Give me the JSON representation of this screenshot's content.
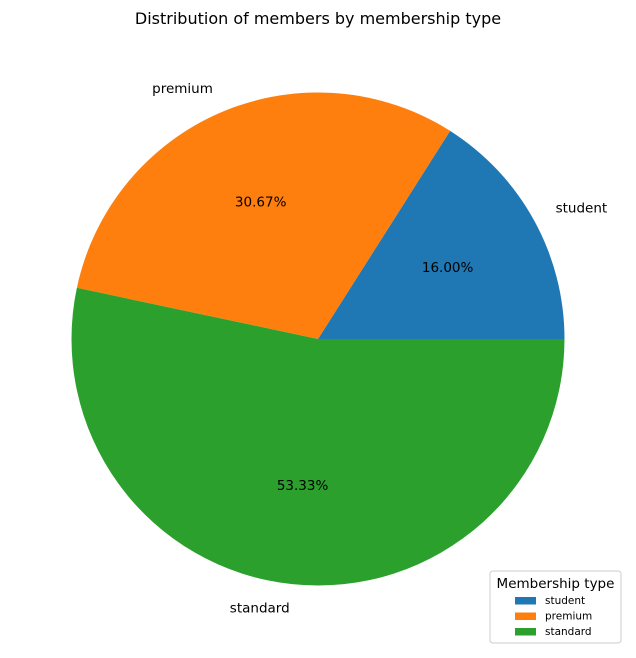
{
  "chart_data": {
    "type": "pie",
    "title": "Distribution of members by membership type",
    "categories": [
      "student",
      "premium",
      "standard"
    ],
    "values": [
      16.0,
      30.67,
      53.33
    ],
    "value_labels": [
      "16.00%",
      "30.67%",
      "53.33%"
    ],
    "colors": [
      "#1f77b4",
      "#ff7f0e",
      "#2ca02c"
    ],
    "start_angle": 0,
    "direction": "counterclockwise",
    "legend": {
      "title": "Membership type",
      "placement": "lower-right",
      "entries": [
        "student",
        "premium",
        "standard"
      ]
    }
  }
}
